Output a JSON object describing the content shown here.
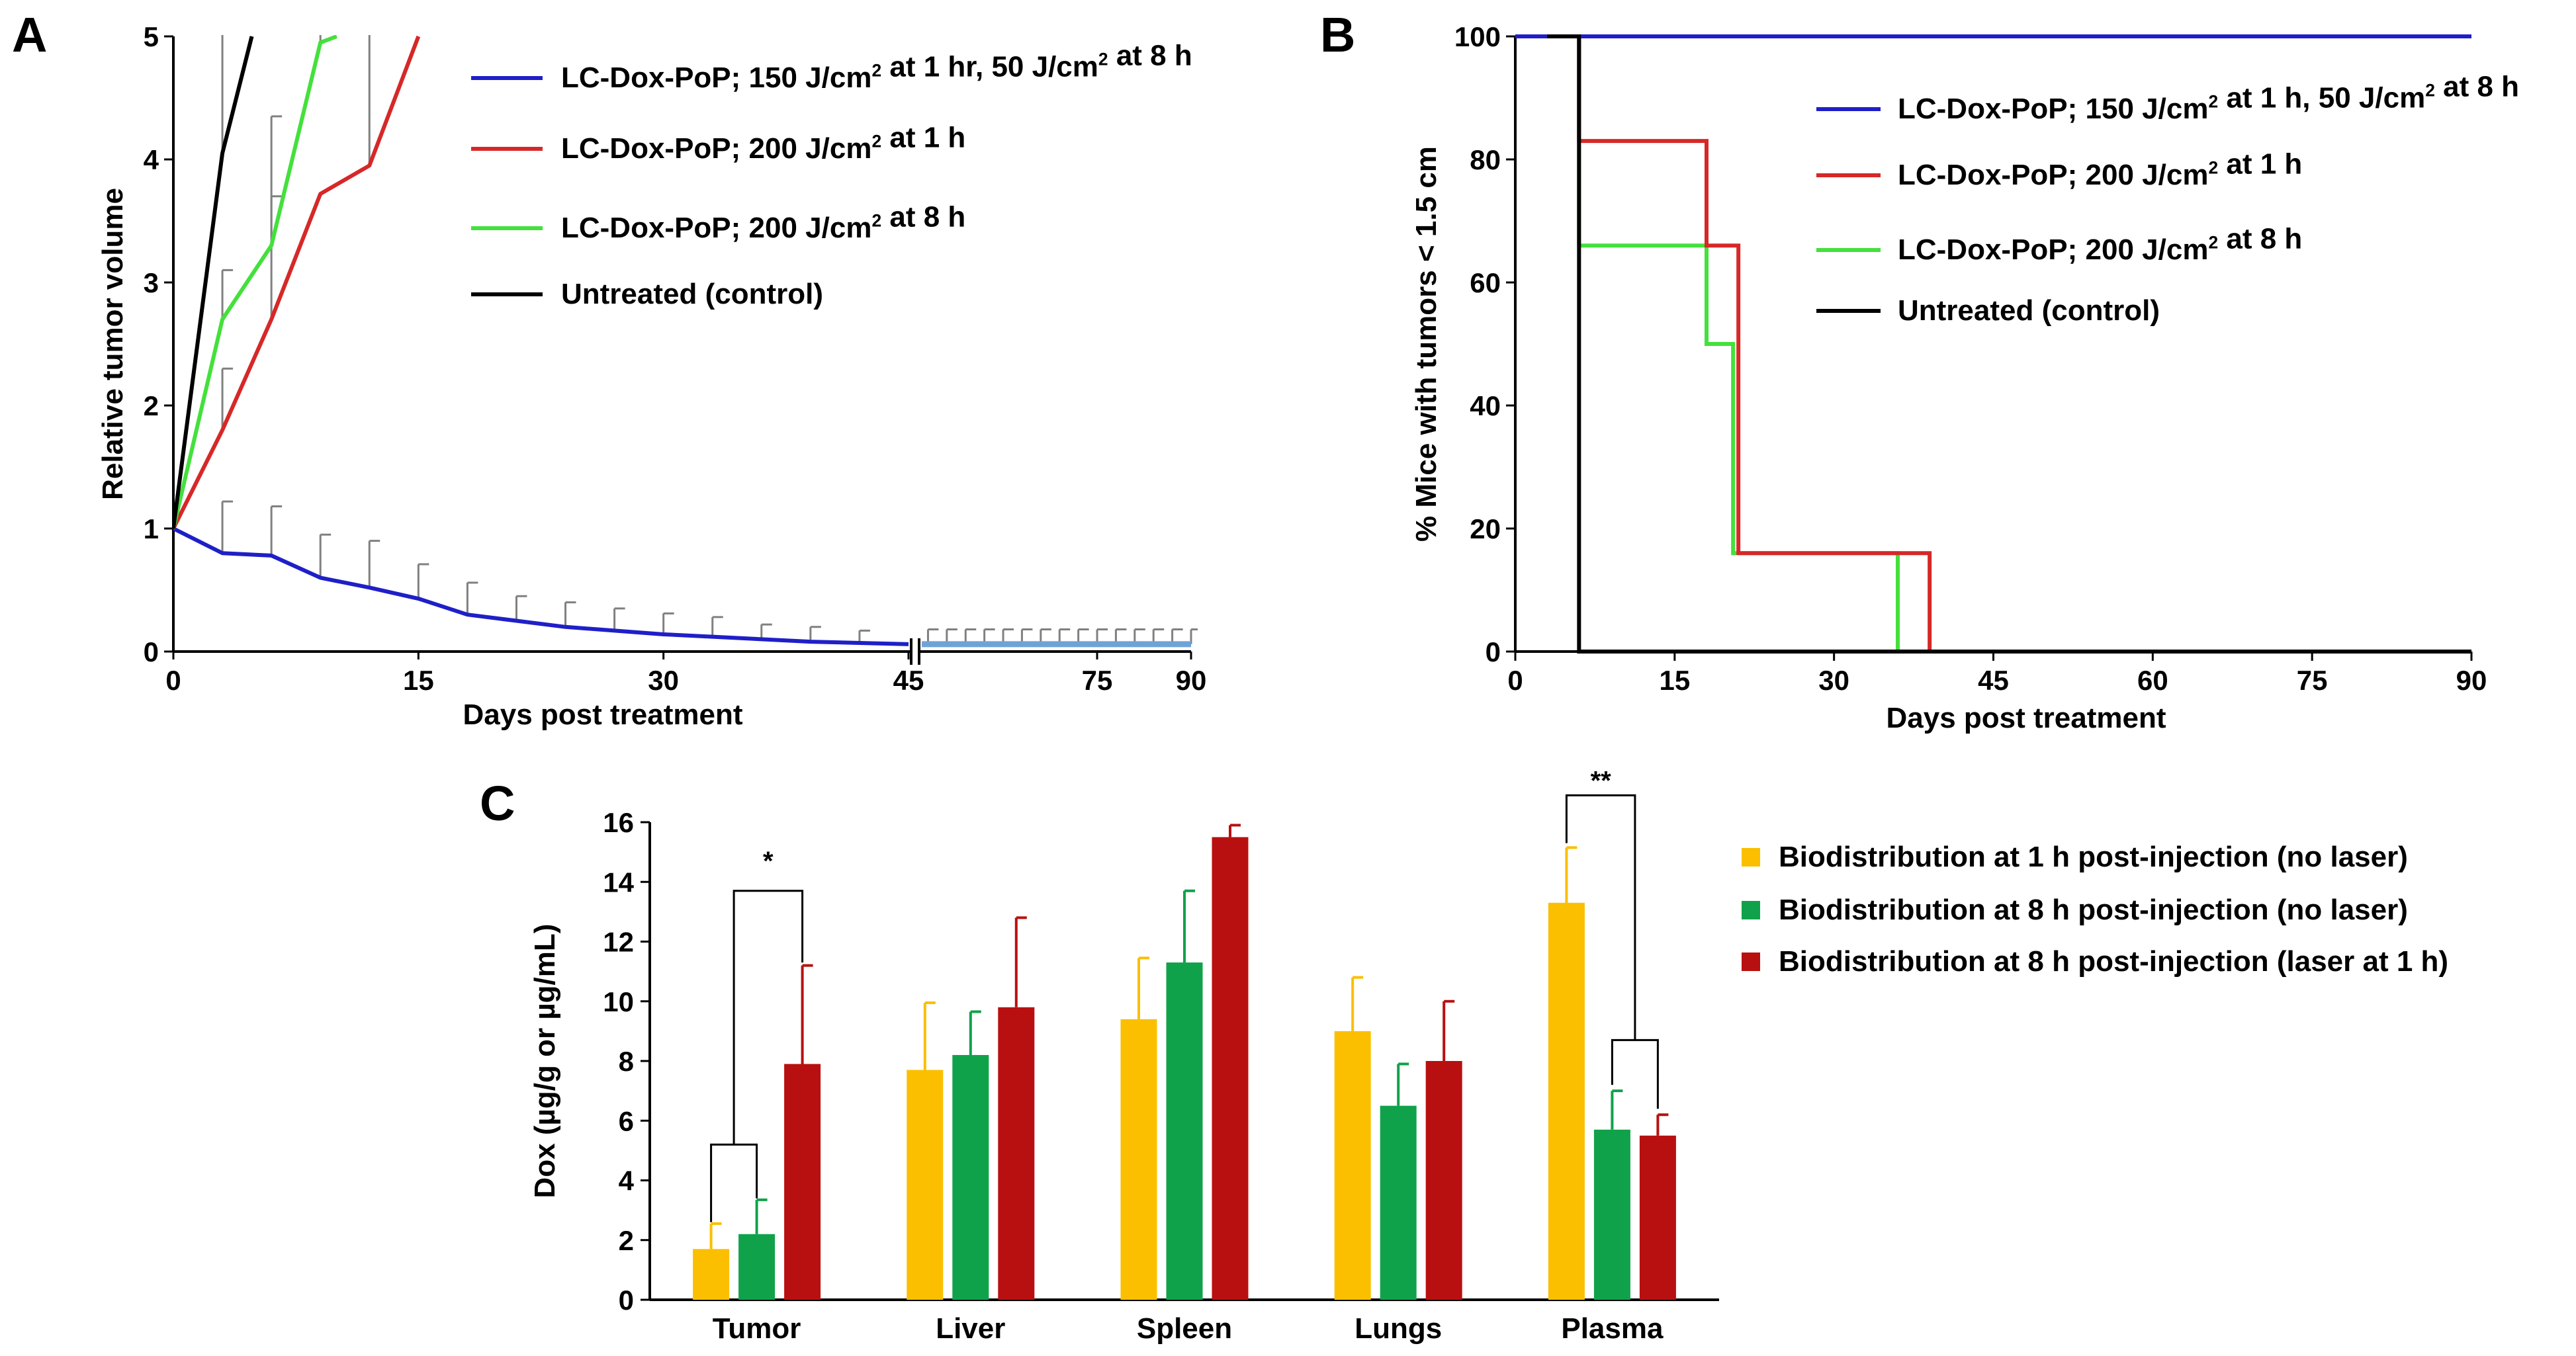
{
  "panel_letters": [
    "A",
    "B",
    "C"
  ],
  "chart_data": [
    {
      "panel": "A",
      "type": "line",
      "xlabel": "Days post treatment",
      "ylabel": "Relative tumor volume",
      "xlim": [
        0,
        90
      ],
      "ylim": [
        0,
        5
      ],
      "axis_break": [
        45,
        47
      ],
      "x_ticks": [
        0,
        15,
        30,
        45,
        75,
        90
      ],
      "y_ticks": [
        0,
        1,
        2,
        3,
        4,
        5
      ],
      "series": [
        {
          "name": "LC-Dox-PoP; 150 J/cm² at 1 hr,  50 J/cm² at 8 h",
          "color": "#1f1fc8",
          "x": [
            0,
            3,
            6,
            9,
            12,
            15,
            18,
            21,
            24,
            27,
            30,
            33,
            36,
            39,
            42,
            45
          ],
          "y": [
            1.0,
            0.8,
            0.78,
            0.6,
            0.52,
            0.43,
            0.3,
            0.25,
            0.2,
            0.17,
            0.14,
            0.12,
            0.1,
            0.08,
            0.07,
            0.06
          ],
          "error": [
            0,
            0.42,
            0.4,
            0.35,
            0.38,
            0.28,
            0.26,
            0.2,
            0.2,
            0.18,
            0.17,
            0.16,
            0.12,
            0.12,
            0.1,
            0
          ],
          "continuation": {
            "x": [
              47,
              90
            ],
            "y": [
              0.06,
              0.06
            ],
            "color": "#6ea3d8"
          },
          "continuation_error_x": [
            48,
            51,
            54,
            57,
            60,
            63,
            66,
            69,
            72,
            75,
            78,
            81,
            84,
            87,
            90
          ],
          "continuation_error": 0.12
        },
        {
          "name": "LC-Dox-PoP; 200 J/cm² at 1 h",
          "color": "#d62828",
          "x": [
            0,
            3,
            6,
            9,
            12,
            15
          ],
          "y": [
            1.0,
            1.8,
            2.7,
            3.72,
            3.95,
            5.0
          ],
          "error": [
            0,
            0.5,
            1.0,
            0,
            0,
            0
          ]
        },
        {
          "name": "LC-Dox-PoP; 200 J/cm² at 8 h",
          "color": "#44e03c",
          "x": [
            0,
            3,
            6,
            9,
            10
          ],
          "y": [
            1.0,
            2.7,
            3.3,
            4.95,
            5.0
          ],
          "error": [
            0,
            0.4,
            1.05,
            0,
            0
          ]
        },
        {
          "name": "Untreated (control)",
          "color": "#000000",
          "x": [
            0,
            3,
            4.8
          ],
          "y": [
            1.0,
            4.05,
            5.0
          ],
          "error": [
            0,
            1.2,
            0
          ]
        }
      ],
      "extra_error_bars": [
        {
          "x": 9,
          "y": 4.95,
          "error": 0.7
        },
        {
          "x": 12,
          "y": 3.95,
          "error": 1.3
        }
      ]
    },
    {
      "panel": "B",
      "type": "line",
      "step": true,
      "xlabel": "Days post treatment",
      "ylabel": "% Mice with tumors < 1.5 cm",
      "xlim": [
        0,
        90
      ],
      "ylim": [
        0,
        100
      ],
      "x_ticks": [
        0,
        15,
        30,
        45,
        60,
        75,
        90
      ],
      "y_ticks": [
        0,
        20,
        40,
        60,
        80,
        100
      ],
      "series": [
        {
          "name": "LC-Dox-PoP; 150 J/cm² at 1 h,  50 J/cm² at 8 h",
          "color": "#1f1fc8",
          "x": [
            0,
            90
          ],
          "y": [
            100,
            100
          ]
        },
        {
          "name": "LC-Dox-PoP; 200 J/cm² at 1 h",
          "color": "#d62828",
          "x": [
            0,
            6,
            18,
            21,
            39,
            90
          ],
          "y": [
            100,
            83,
            66,
            16,
            0,
            0
          ]
        },
        {
          "name": "LC-Dox-PoP; 200 J/cm² at 8 h",
          "color": "#44e03c",
          "x": [
            0,
            6,
            18,
            20.5,
            36,
            90
          ],
          "y": [
            100,
            66,
            50,
            16,
            0,
            0
          ]
        },
        {
          "name": "Untreated (control)",
          "color": "#000000",
          "x": [
            3,
            6,
            90
          ],
          "y": [
            100,
            0,
            0
          ]
        }
      ]
    },
    {
      "panel": "C",
      "type": "bar",
      "ylabel": "Dox (µg/g or µg/mL)",
      "ylim": [
        0,
        16
      ],
      "y_ticks": [
        0,
        2,
        4,
        6,
        8,
        10,
        12,
        14,
        16
      ],
      "categories": [
        "Tumor",
        "Liver",
        "Spleen",
        "Lungs",
        "Plasma"
      ],
      "series": [
        {
          "name": "Biodistribution at 1 h post-injection (no laser)",
          "color": "#fbbf00",
          "values": [
            1.7,
            7.7,
            9.4,
            9.0,
            13.3
          ],
          "error": [
            0.85,
            2.25,
            2.05,
            1.8,
            1.85
          ]
        },
        {
          "name": "Biodistribution at 8 h post-injection (no laser)",
          "color": "#10a24a",
          "values": [
            2.2,
            8.2,
            11.3,
            6.5,
            5.7
          ],
          "error": [
            1.15,
            1.45,
            2.4,
            1.4,
            1.3
          ]
        },
        {
          "name": "Biodistribution at 8 h post-injection (laser at 1 h)",
          "color": "#b81010",
          "values": [
            7.9,
            9.8,
            15.5,
            8.0,
            5.5
          ],
          "error": [
            3.3,
            3.0,
            0.4,
            2.0,
            0.7
          ]
        }
      ],
      "significance": [
        {
          "label": "*",
          "category": "Tumor"
        },
        {
          "label": "**",
          "category": "Plasma"
        }
      ]
    }
  ]
}
